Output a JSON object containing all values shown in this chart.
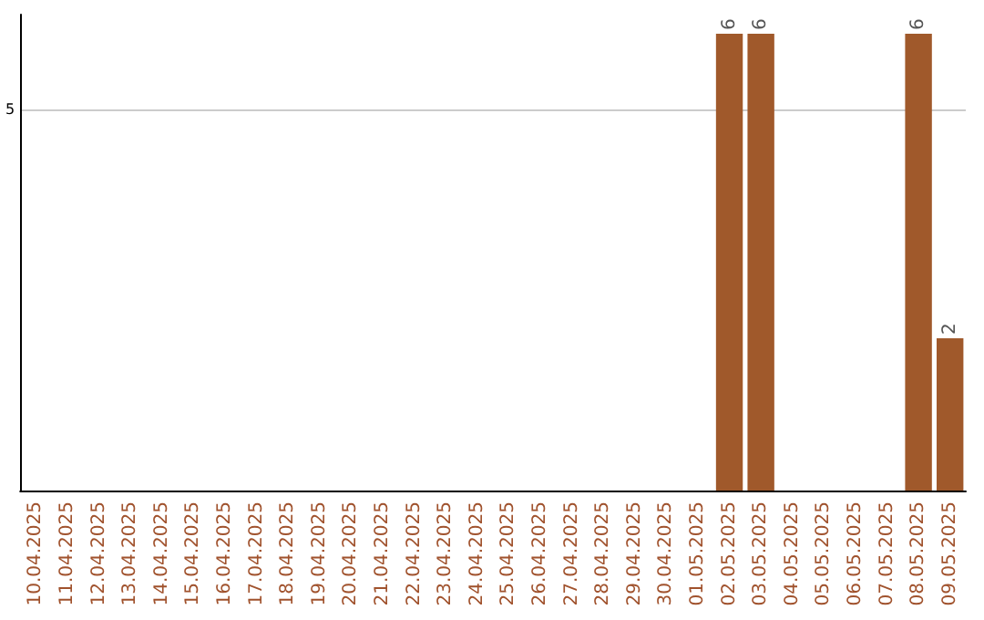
{
  "chart_data": {
    "type": "bar",
    "categories": [
      "10.04.2025",
      "11.04.2025",
      "12.04.2025",
      "13.04.2025",
      "14.04.2025",
      "15.04.2025",
      "16.04.2025",
      "17.04.2025",
      "18.04.2025",
      "19.04.2025",
      "20.04.2025",
      "21.04.2025",
      "22.04.2025",
      "23.04.2025",
      "24.04.2025",
      "25.04.2025",
      "26.04.2025",
      "27.04.2025",
      "28.04.2025",
      "29.04.2025",
      "30.04.2025",
      "01.05.2025",
      "02.05.2025",
      "03.05.2025",
      "04.05.2025",
      "05.05.2025",
      "06.05.2025",
      "07.05.2025",
      "08.05.2025",
      "09.05.2025"
    ],
    "values": [
      null,
      null,
      null,
      null,
      null,
      null,
      null,
      null,
      null,
      null,
      null,
      null,
      null,
      null,
      null,
      null,
      null,
      null,
      null,
      null,
      null,
      null,
      6,
      6,
      null,
      null,
      null,
      null,
      6,
      2
    ],
    "color": "#a0592b",
    "ylim": [
      0,
      6.25
    ],
    "yticks": [
      5
    ],
    "grid": "y",
    "data_labels": true
  }
}
